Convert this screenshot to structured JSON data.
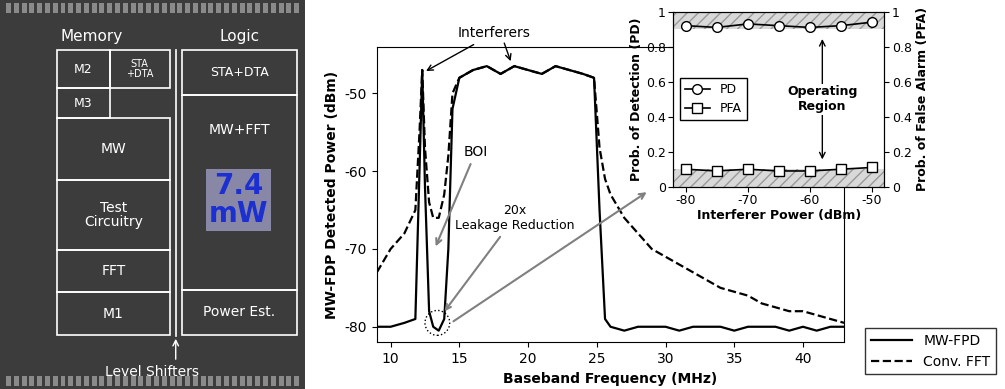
{
  "die": {
    "headers": [
      "Memory",
      "Logic"
    ],
    "blocks": [
      "M2",
      "STA\n+DTA",
      "M3",
      "MW",
      "Test\nCircuitry",
      "FFT",
      "M1",
      "STA+DTA",
      "MW+FFT",
      "Power Est."
    ],
    "power": "7.4\nmW",
    "footer": "Level Shifters"
  },
  "chart_data": [
    {
      "type": "line",
      "x": [
        9,
        10,
        11,
        11.8,
        12.1,
        12.3,
        12.5,
        12.8,
        13.1,
        13.5,
        13.9,
        14.2,
        14.5,
        15,
        16,
        17,
        18,
        19,
        20,
        21,
        22,
        23,
        24,
        24.8,
        25.2,
        25.6,
        26,
        27,
        28,
        29,
        30,
        31,
        32,
        33,
        34,
        35,
        36,
        37,
        38,
        39,
        40,
        41,
        42,
        43
      ],
      "series": [
        {
          "name": "MW-FPD",
          "color": "#000000",
          "line_style": "solid",
          "values": [
            -80,
            -80,
            -79.5,
            -79,
            -60,
            -47,
            -62,
            -78,
            -80,
            -80.5,
            -79,
            -70,
            -52,
            -48,
            -47,
            -46.5,
            -47.5,
            -46.5,
            -47,
            -47.5,
            -46.5,
            -47,
            -47.5,
            -48,
            -65,
            -79,
            -80,
            -80.5,
            -80,
            -80,
            -80,
            -80.5,
            -80,
            -80,
            -80,
            -80.5,
            -80,
            -80,
            -80,
            -80.5,
            -80,
            -80.5,
            -80,
            -80
          ]
        },
        {
          "name": "Conv. FFT",
          "color": "#000000",
          "line_style": "dashed",
          "values": [
            -73,
            -70,
            -68,
            -65,
            -55,
            -47,
            -57,
            -64,
            -66,
            -66,
            -63,
            -58,
            -50,
            -48,
            -47,
            -46.5,
            -47.5,
            -46.5,
            -47,
            -47.5,
            -46.5,
            -47,
            -47.5,
            -48,
            -57,
            -61,
            -63,
            -66,
            -68,
            -70,
            -71,
            -72,
            -73,
            -74,
            -75,
            -75.5,
            -76,
            -77,
            -77.5,
            -78,
            -78,
            -78.5,
            -79,
            -79.5
          ]
        }
      ],
      "xlabel": "Baseband Frequency (MHz)",
      "ylabel": "MW-FDP Detected Power (dBm)",
      "xlim": [
        9,
        43
      ],
      "ylim": [
        -82,
        -44
      ],
      "xticks": [
        10,
        15,
        20,
        25,
        30,
        35,
        40
      ],
      "yticks": [
        -80,
        -70,
        -60,
        -50
      ],
      "legend": "lower right",
      "annotations": [
        "Interferers",
        "BOI",
        "20x\nLeakage Reduction"
      ]
    },
    {
      "type": "line",
      "x": [
        -80,
        -75,
        -70,
        -65,
        -60,
        -55,
        -50
      ],
      "series": [
        {
          "name": "PD",
          "color": "#000000",
          "marker": "circle",
          "values": [
            0.92,
            0.91,
            0.93,
            0.92,
            0.91,
            0.92,
            0.94
          ]
        },
        {
          "name": "PFA",
          "color": "#000000",
          "marker": "square",
          "axis": "y2",
          "values": [
            0.1,
            0.09,
            0.1,
            0.09,
            0.09,
            0.1,
            0.11
          ]
        }
      ],
      "xlabel": "Interferer Power (dBm)",
      "ylabel": "Prob. of Detection (PD)",
      "y2label": "Prob. of False Alarm (PFA)",
      "xlim": [
        -82,
        -48
      ],
      "ylim": [
        0,
        1
      ],
      "y2lim": [
        0,
        1
      ],
      "xticks": [
        -80,
        -70,
        -60,
        -50
      ],
      "yticks": [
        0,
        0.2,
        0.4,
        0.6,
        0.8,
        1
      ],
      "y2ticks": [
        0,
        0.2,
        0.4,
        0.6,
        0.8,
        1
      ],
      "legend": "center left",
      "bands": [
        [
          0,
          0.1
        ],
        [
          0.9,
          1
        ]
      ],
      "annotations": [
        "Operating\nRegion"
      ]
    }
  ]
}
